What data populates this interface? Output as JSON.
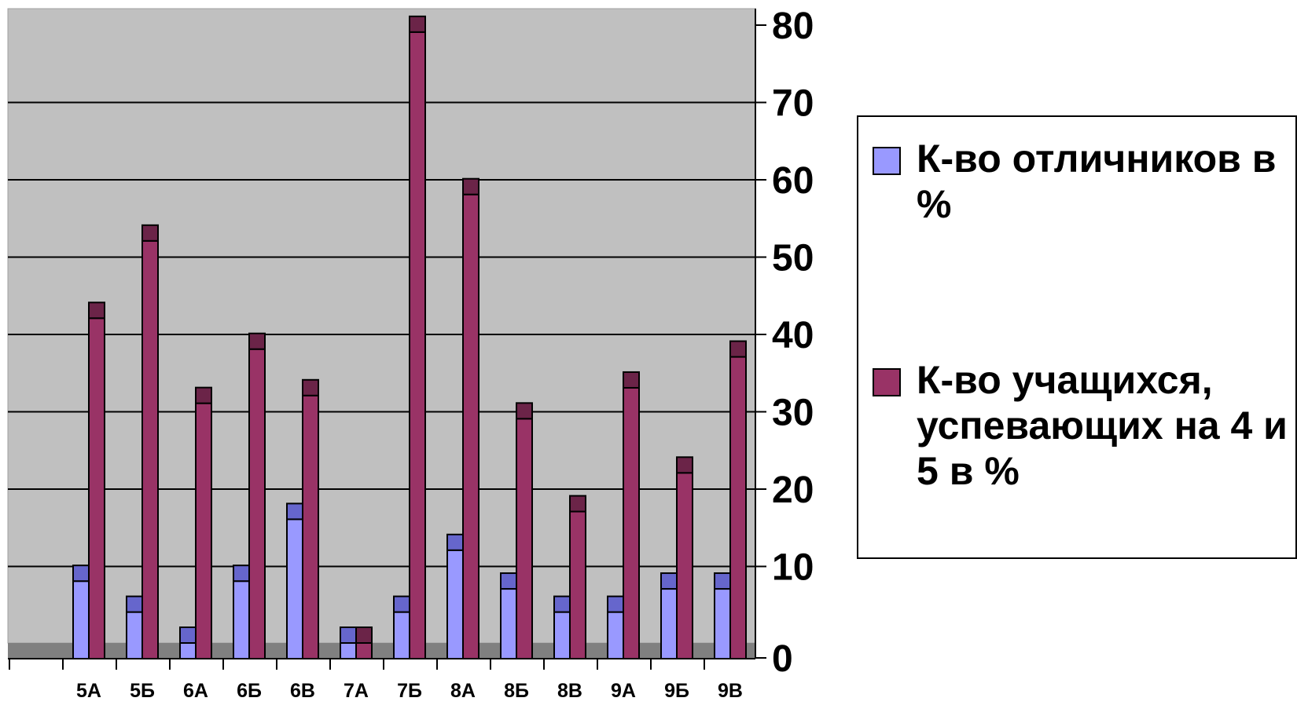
{
  "chart_data": {
    "type": "bar",
    "categories": [
      "",
      "5А",
      "5Б",
      "6А",
      "6Б",
      "6В",
      "7А",
      "7Б",
      "8А",
      "8Б",
      "8В",
      "9А",
      "9Б",
      "9В"
    ],
    "series": [
      {
        "name": "К-во отличников в %",
        "values": [
          null,
          8,
          4,
          0,
          8,
          16,
          0,
          4,
          12,
          7,
          4,
          4,
          7,
          7
        ],
        "color": "#9999ff",
        "top_color": "#6666cc"
      },
      {
        "name": "К-во учащихся, успевающих на 4 и 5 в %",
        "values": [
          null,
          42,
          52,
          31,
          38,
          32,
          0,
          79,
          58,
          29,
          17,
          33,
          22,
          37
        ],
        "color": "#993366",
        "top_color": "#6b2448"
      }
    ],
    "y_axis": {
      "min": 0,
      "max": 80,
      "step": 10,
      "ticks": [
        "0",
        "10",
        "20",
        "30",
        "40",
        "50",
        "60",
        "70",
        "80"
      ],
      "position": "right"
    },
    "grid": true,
    "legend_placement": "right",
    "colors": {
      "plot_background": "#c0c0c0",
      "floor": "#808080",
      "gridline": "#000000"
    }
  }
}
